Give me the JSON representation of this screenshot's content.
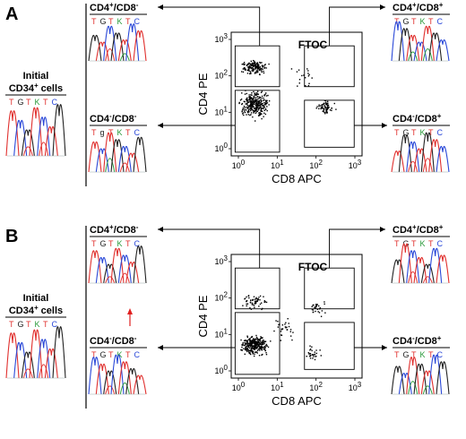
{
  "panels": [
    {
      "letter": "A",
      "initial": {
        "line1": "Initial",
        "line2": "CD34",
        "sup": "+",
        "line2b": " cells",
        "seq": [
          "T",
          "G",
          "T",
          "K",
          "T",
          "C"
        ]
      },
      "plot": {
        "ftoc": "FTOC",
        "ylabel": "CD4 PE",
        "xlabel": "CD8 APC"
      },
      "quadrants": [
        {
          "pos": "tl",
          "a": "CD4",
          "as": "+",
          "b": "/CD8",
          "bs": "-",
          "seq": [
            "T",
            "G",
            "T",
            "K",
            "T",
            "C"
          ]
        },
        {
          "pos": "tr",
          "a": "CD4",
          "as": "+",
          "b": "/CD8",
          "bs": "+",
          "seq": [
            "T",
            "G",
            "T",
            "K",
            "T",
            "C"
          ]
        },
        {
          "pos": "bl",
          "a": "CD4",
          "as": "-",
          "b": "/CD8",
          "bs": "-",
          "seq": [
            "T",
            "g",
            "T",
            "K",
            "T",
            "C"
          ]
        },
        {
          "pos": "br",
          "a": "CD4",
          "as": "-",
          "b": "/CD8",
          "bs": "+",
          "seq": [
            "T",
            "G",
            "T",
            "K",
            "T",
            "C"
          ]
        }
      ]
    },
    {
      "letter": "B",
      "initial": {
        "line1": "Initial",
        "line2": "CD34",
        "sup": "+",
        "line2b": " cells",
        "seq": [
          "T",
          "G",
          "T",
          "K",
          "T",
          "C"
        ]
      },
      "plot": {
        "ftoc": "FTOC",
        "ylabel": "CD4 PE",
        "xlabel": "CD8 APC"
      },
      "quadrants": [
        {
          "pos": "tl",
          "a": "CD4",
          "as": "+",
          "b": "/CD8",
          "bs": "-",
          "seq": [
            "T",
            "G",
            "T",
            "K",
            "T",
            "C"
          ]
        },
        {
          "pos": "tr",
          "a": "CD4",
          "as": "+",
          "b": "/CD8",
          "bs": "+",
          "seq": [
            "T",
            "G",
            "T",
            "K",
            "T",
            "C"
          ]
        },
        {
          "pos": "bl",
          "a": "CD4",
          "as": "-",
          "b": "/CD8",
          "bs": "-",
          "seq": [
            "T",
            "G",
            "T",
            "K",
            "T",
            "C"
          ]
        },
        {
          "pos": "br",
          "a": "CD4",
          "as": "-",
          "b": "/CD8",
          "bs": "+",
          "seq": [
            "T",
            "G",
            "T",
            "K",
            "T",
            "C"
          ]
        }
      ]
    }
  ],
  "ticks": [
    "10",
    "10",
    "10",
    "10"
  ],
  "tick_exp": [
    "0",
    "1",
    "2",
    "3"
  ],
  "colors": {
    "T": "#e0302e",
    "G": "#222222",
    "C": "#2a48d8",
    "K": "#2a9a3a",
    "arrow": "#e02020"
  }
}
